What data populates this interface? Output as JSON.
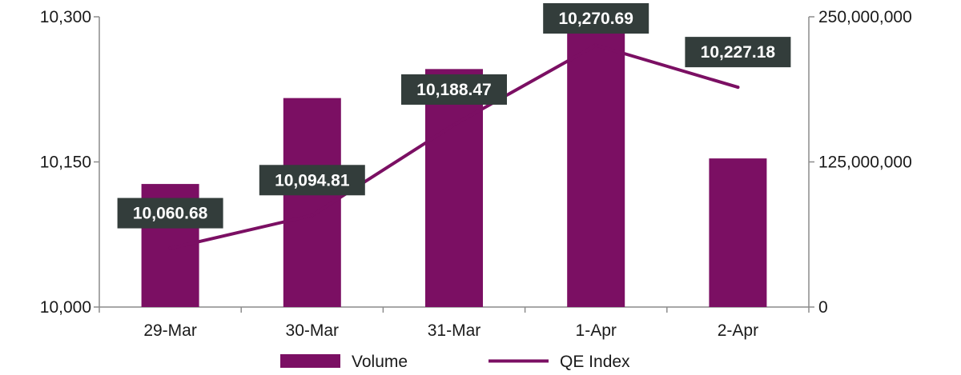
{
  "chart_data": {
    "type": "bar",
    "categories": [
      "29-Mar",
      "30-Mar",
      "31-Mar",
      "1-Apr",
      "2-Apr"
    ],
    "series": [
      {
        "name": "Volume",
        "type": "bar",
        "axis": "right",
        "values": [
          106000000,
          180000000,
          205000000,
          250000000,
          128000000
        ]
      },
      {
        "name": "QE Index",
        "type": "line",
        "axis": "left",
        "values": [
          10060.68,
          10094.81,
          10188.47,
          10270.69,
          10227.18
        ],
        "labels": [
          "10,060.68",
          "10,094.81",
          "10,188.47",
          "10,270.69",
          "10,227.18"
        ]
      }
    ],
    "y_left": {
      "ylim": [
        10000,
        10300
      ],
      "ticks": [
        "10,000",
        "10,150",
        "10,300"
      ]
    },
    "y_right": {
      "ylim": [
        0,
        250000000
      ],
      "ticks": [
        "0",
        "125,000,000",
        "250,000,000"
      ]
    },
    "legend": {
      "position": "bottom",
      "entries": [
        "Volume",
        "QE Index"
      ]
    },
    "grid": false,
    "colors": {
      "bar": "#7b0f63",
      "line": "#7b0f63",
      "label_bg": "#333d3b",
      "label_text": "#ffffff",
      "axis": "#8c8c8c"
    }
  }
}
